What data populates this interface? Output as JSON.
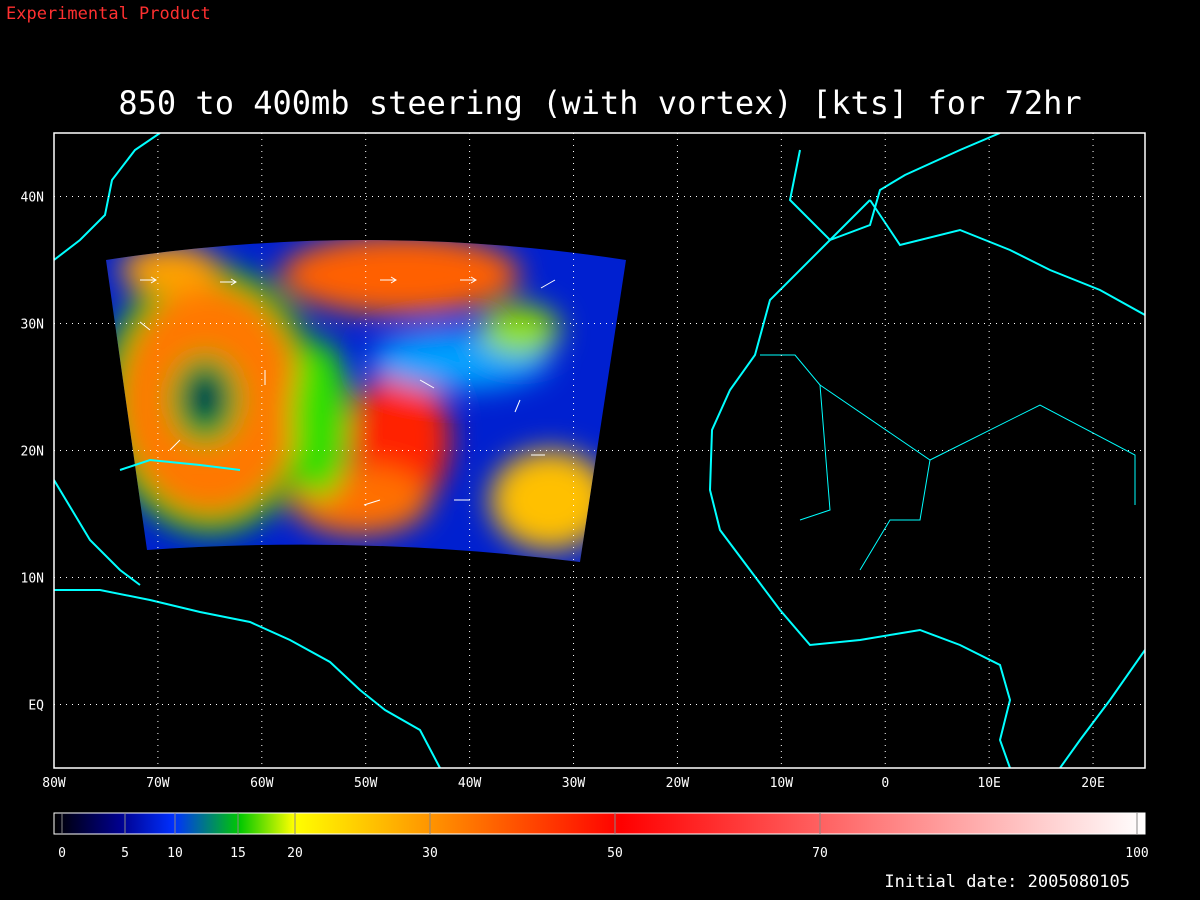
{
  "header": {
    "note": "Experimental Product",
    "title": "850 to 400mb steering (with vortex) [kts] for 72hr"
  },
  "map": {
    "xlim": [
      -80,
      25
    ],
    "ylim": [
      -5,
      45
    ],
    "xticks": [
      {
        "value": -80,
        "label": "80W"
      },
      {
        "value": -70,
        "label": "70W"
      },
      {
        "value": -60,
        "label": "60W"
      },
      {
        "value": -50,
        "label": "50W"
      },
      {
        "value": -40,
        "label": "40W"
      },
      {
        "value": -30,
        "label": "30W"
      },
      {
        "value": -20,
        "label": "20W"
      },
      {
        "value": -10,
        "label": "10W"
      },
      0,
      {
        "value": 10,
        "label": "10E"
      },
      {
        "value": 20,
        "label": "20E"
      }
    ],
    "yticks": [
      {
        "value": 0,
        "label": "EQ"
      },
      {
        "value": 10,
        "label": "10N"
      },
      {
        "value": 20,
        "label": "20N"
      },
      {
        "value": 30,
        "label": "30N"
      },
      {
        "value": 40,
        "label": "40N"
      }
    ]
  },
  "colorbar": {
    "ticks": [
      0,
      5,
      10,
      15,
      20,
      30,
      50,
      70,
      100
    ]
  },
  "footer": {
    "initial_date": "Initial date: 2005080105"
  }
}
